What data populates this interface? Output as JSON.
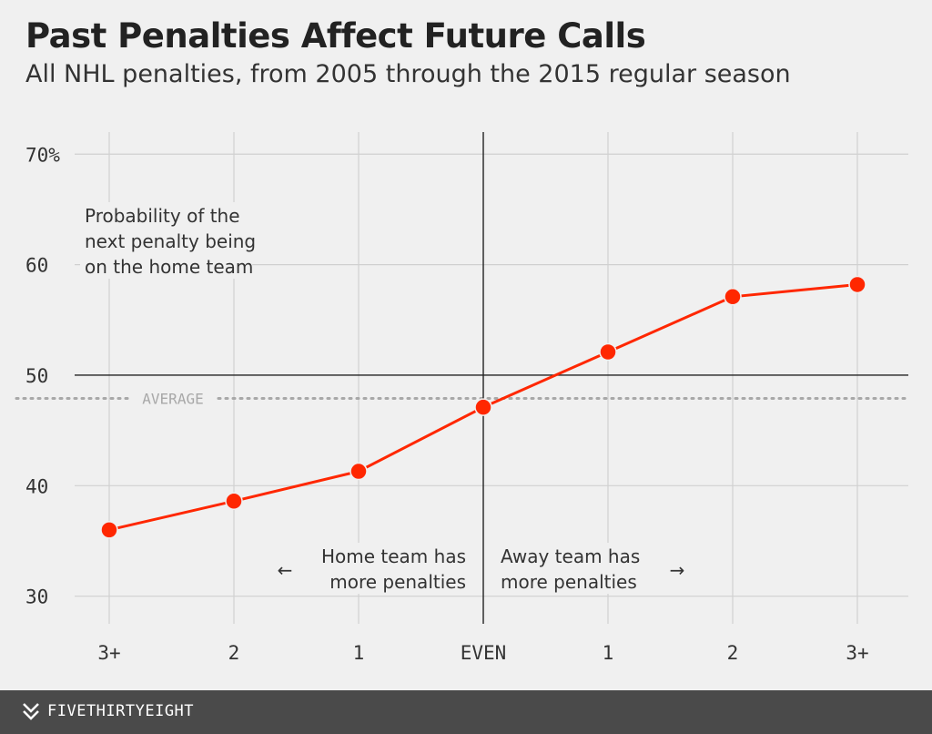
{
  "title": "Past Penalties Affect Future Calls",
  "subtitle": "All NHL penalties, from 2005 through the 2015 regular season",
  "footer": {
    "brand": "FIVETHIRTYEIGHT"
  },
  "colors": {
    "series": "#ff2700",
    "average": "#a8a8a8",
    "grid": "#d0d0d0",
    "axis": "#222222",
    "background": "#f0f0f0",
    "footer": "#4a4a4a"
  },
  "chart_data": {
    "type": "line",
    "title": "Past Penalties Affect Future Calls",
    "categories": [
      "3+",
      "2",
      "1",
      "EVEN",
      "1",
      "2",
      "3+"
    ],
    "series": [
      {
        "values": [
          36.0,
          38.6,
          41.3,
          47.1,
          52.1,
          57.1,
          58.2
        ]
      }
    ],
    "ylim": [
      27.5,
      72
    ],
    "yticks": [
      30,
      40,
      50,
      60,
      70
    ],
    "ytick_labels": [
      "30",
      "40",
      "50",
      "60",
      "70%"
    ],
    "baseline": 50,
    "average": 47.9,
    "average_label": "AVERAGE",
    "annotation_y": "Probability of the\nnext penalty being\non the home team",
    "annotation_left": {
      "text": "Home team has\nmore penalties",
      "arrow": "←"
    },
    "annotation_right": {
      "text": "Away team has\nmore penalties",
      "arrow": "→"
    },
    "grid": true,
    "legend": "none"
  }
}
